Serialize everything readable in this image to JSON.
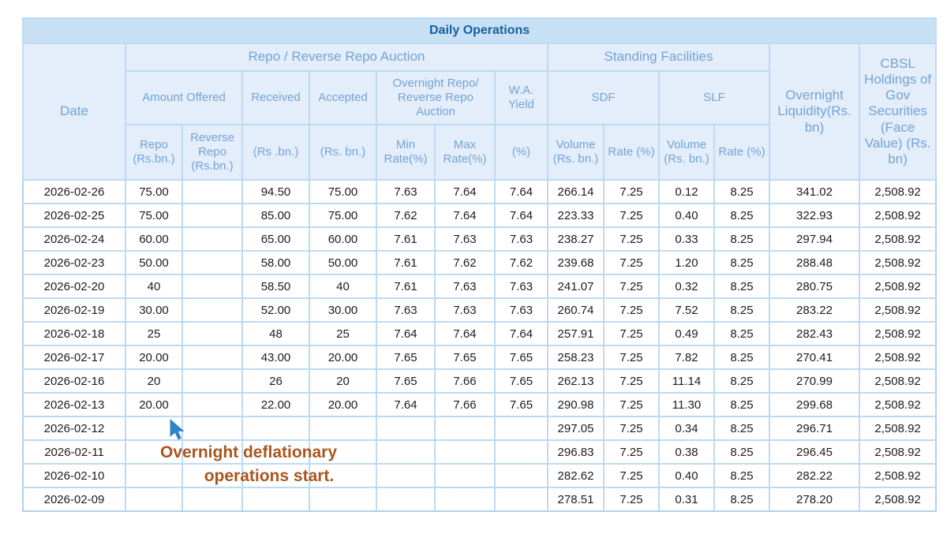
{
  "title": "Daily Operations",
  "colors": {
    "title_band_bg": "#c7e0f4",
    "title_text": "#1560a0",
    "header_bg": "#e3eefa",
    "header_text": "#74a2d6",
    "grid_border": "#bedaf2",
    "data_text": "#1c1c1c",
    "annotation_text": "#a9561e",
    "cursor_blue": "#2b84c6"
  },
  "annotation": {
    "line1": "Overnight deflationary",
    "line2": "operations start.",
    "icon": "cursor-arrow-icon"
  },
  "chart_data": {
    "type": "table",
    "title": "Daily Operations",
    "header": {
      "date": "Date",
      "group_repo_auction": "Repo / Reverse Repo Auction",
      "group_standing_facilities": "Standing Facilities",
      "overnight_liquidity": "Overnight Liquidity(Rs. bn)",
      "cbsl_holdings": "CBSL Holdings of Gov Securities (Face Value) (Rs. bn)",
      "amount_offered": "Amount Offered",
      "received": "Received",
      "accepted": "Accepted",
      "overnight_repo_auction": "Overnight Repo/ Reverse Repo Auction",
      "wa_yield": "W.A. Yield",
      "sdf": "SDF",
      "slf": "SLF",
      "repo_unit": "Repo (Rs.bn.)",
      "reverse_repo_unit": "Reverse Repo (Rs.bn.)",
      "received_unit": "(Rs .bn.)",
      "accepted_unit": "(Rs. bn.)",
      "min_rate": "Min Rate(%)",
      "max_rate": "Max Rate(%)",
      "pct_unit": "(%)",
      "sdf_volume_unit": "Volume (Rs. bn.)",
      "sdf_rate_unit": "Rate (%)",
      "slf_volume_unit": "Volume (Rs. bn.)",
      "slf_rate_unit": "Rate (%)"
    },
    "columns": [
      "Date",
      "Repo (Rs.bn.)",
      "Reverse Repo (Rs.bn.)",
      "Received (Rs .bn.)",
      "Accepted (Rs. bn.)",
      "Min Rate(%)",
      "Max Rate(%)",
      "W.A. Yield (%)",
      "SDF Volume (Rs. bn.)",
      "SDF Rate (%)",
      "SLF Volume (Rs. bn.)",
      "SLF Rate (%)",
      "Overnight Liquidity(Rs. bn)",
      "CBSL Holdings of Gov Securities (Face Value) (Rs. bn)"
    ],
    "rows": [
      [
        "2026-02-26",
        "75.00",
        "",
        "94.50",
        "75.00",
        "7.63",
        "7.64",
        "7.64",
        "266.14",
        "7.25",
        "0.12",
        "8.25",
        "341.02",
        "2,508.92"
      ],
      [
        "2026-02-25",
        "75.00",
        "",
        "85.00",
        "75.00",
        "7.62",
        "7.64",
        "7.64",
        "223.33",
        "7.25",
        "0.40",
        "8.25",
        "322.93",
        "2,508.92"
      ],
      [
        "2026-02-24",
        "60.00",
        "",
        "65.00",
        "60.00",
        "7.61",
        "7.63",
        "7.63",
        "238.27",
        "7.25",
        "0.33",
        "8.25",
        "297.94",
        "2,508.92"
      ],
      [
        "2026-02-23",
        "50.00",
        "",
        "58.00",
        "50.00",
        "7.61",
        "7.62",
        "7.62",
        "239.68",
        "7.25",
        "1.20",
        "8.25",
        "288.48",
        "2,508.92"
      ],
      [
        "2026-02-20",
        "40",
        "",
        "58.50",
        "40",
        "7.61",
        "7.63",
        "7.63",
        "241.07",
        "7.25",
        "0.32",
        "8.25",
        "280.75",
        "2,508.92"
      ],
      [
        "2026-02-19",
        "30.00",
        "",
        "52.00",
        "30.00",
        "7.63",
        "7.63",
        "7.63",
        "260.74",
        "7.25",
        "7.52",
        "8.25",
        "283.22",
        "2,508.92"
      ],
      [
        "2026-02-18",
        "25",
        "",
        "48",
        "25",
        "7.64",
        "7.64",
        "7.64",
        "257.91",
        "7.25",
        "0.49",
        "8.25",
        "282.43",
        "2,508.92"
      ],
      [
        "2026-02-17",
        "20.00",
        "",
        "43.00",
        "20.00",
        "7.65",
        "7.65",
        "7.65",
        "258.23",
        "7.25",
        "7.82",
        "8.25",
        "270.41",
        "2,508.92"
      ],
      [
        "2026-02-16",
        "20",
        "",
        "26",
        "20",
        "7.65",
        "7.66",
        "7.65",
        "262.13",
        "7.25",
        "11.14",
        "8.25",
        "270.99",
        "2,508.92"
      ],
      [
        "2026-02-13",
        "20.00",
        "",
        "22.00",
        "20.00",
        "7.64",
        "7.66",
        "7.65",
        "290.98",
        "7.25",
        "11.30",
        "8.25",
        "299.68",
        "2,508.92"
      ],
      [
        "2026-02-12",
        "",
        "",
        "",
        "",
        "",
        "",
        "",
        "297.05",
        "7.25",
        "0.34",
        "8.25",
        "296.71",
        "2,508.92"
      ],
      [
        "2026-02-11",
        "",
        "",
        "",
        "",
        "",
        "",
        "",
        "296.83",
        "7.25",
        "0.38",
        "8.25",
        "296.45",
        "2,508.92"
      ],
      [
        "2026-02-10",
        "",
        "",
        "",
        "",
        "",
        "",
        "",
        "282.62",
        "7.25",
        "0.40",
        "8.25",
        "282.22",
        "2,508.92"
      ],
      [
        "2026-02-09",
        "",
        "",
        "",
        "",
        "",
        "",
        "",
        "278.51",
        "7.25",
        "0.31",
        "8.25",
        "278.20",
        "2,508.92"
      ]
    ]
  }
}
